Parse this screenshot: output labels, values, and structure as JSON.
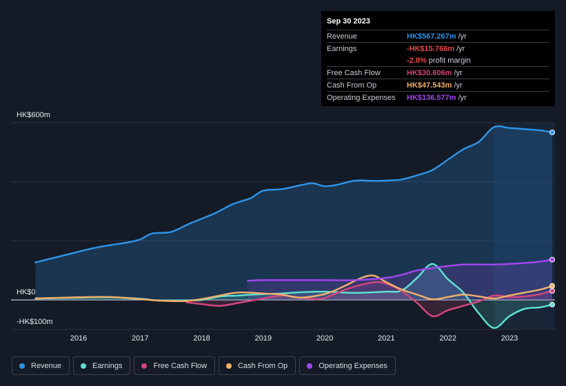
{
  "chart_data": {
    "type": "line",
    "ylim": [
      -100,
      600
    ],
    "y_axis_labels": [
      "HK$600m",
      "HK$0",
      "-HK$100m"
    ],
    "x_ticks": [
      "2016",
      "2017",
      "2018",
      "2019",
      "2020",
      "2021",
      "2022",
      "2023"
    ],
    "series": [
      {
        "name": "Revenue",
        "color": "#2e93e6",
        "fill": true,
        "x": [
          2015.3,
          2015.8,
          2016.3,
          2016.8,
          2017.0,
          2017.2,
          2017.5,
          2017.8,
          2018.2,
          2018.5,
          2018.8,
          2019.0,
          2019.3,
          2019.6,
          2019.8,
          2020.0,
          2020.2,
          2020.5,
          2020.8,
          2021.0,
          2021.25,
          2021.5,
          2021.75,
          2022.0,
          2022.25,
          2022.5,
          2022.75,
          2023.0,
          2023.25,
          2023.5,
          2023.75
        ],
        "values": [
          127,
          153,
          178,
          195,
          205,
          225,
          230,
          258,
          292,
          324,
          345,
          370,
          375,
          388,
          395,
          385,
          390,
          404,
          403,
          404,
          408,
          422,
          440,
          475,
          510,
          535,
          585,
          582,
          578,
          574,
          567.267
        ]
      },
      {
        "name": "Earnings",
        "color": "#5ee0d1",
        "fill": true,
        "x": [
          2015.3,
          2016.0,
          2016.5,
          2017.0,
          2017.3,
          2017.7,
          2018.0,
          2018.3,
          2018.6,
          2019.0,
          2019.3,
          2019.6,
          2020.0,
          2020.5,
          2021.0,
          2021.25,
          2021.5,
          2021.75,
          2022.0,
          2022.25,
          2022.5,
          2022.75,
          2023.0,
          2023.25,
          2023.5,
          2023.75
        ],
        "values": [
          5,
          8,
          9,
          4,
          -2,
          -2,
          0,
          12,
          15,
          20,
          22,
          26,
          28,
          24,
          28,
          32,
          75,
          122,
          70,
          25,
          -45,
          -95,
          -55,
          -30,
          -25,
          -15.766
        ]
      },
      {
        "name": "Free Cash Flow",
        "color": "#d2467e",
        "fill": true,
        "x": [
          2017.75,
          2018.0,
          2018.3,
          2018.6,
          2019.0,
          2019.3,
          2019.6,
          2019.9,
          2020.1,
          2020.4,
          2020.8,
          2021.0,
          2021.25,
          2021.5,
          2021.75,
          2022.0,
          2022.25,
          2022.5,
          2022.75,
          2023.0,
          2023.25,
          2023.5,
          2023.75
        ],
        "values": [
          -8,
          -14,
          -20,
          -10,
          5,
          15,
          8,
          3,
          15,
          40,
          60,
          55,
          30,
          -10,
          -55,
          -35,
          -20,
          -5,
          15,
          10,
          12,
          20,
          30.606
        ]
      },
      {
        "name": "Cash From Op",
        "color": "#f0b06a",
        "fill": false,
        "x": [
          2015.3,
          2016.0,
          2016.5,
          2017.0,
          2017.3,
          2017.7,
          2018.0,
          2018.3,
          2018.6,
          2019.0,
          2019.3,
          2019.6,
          2020.0,
          2020.3,
          2020.6,
          2020.8,
          2021.0,
          2021.25,
          2021.5,
          2021.75,
          2022.0,
          2022.25,
          2022.5,
          2022.75,
          2023.0,
          2023.25,
          2023.5,
          2023.75
        ],
        "values": [
          5,
          9,
          10,
          3,
          -2,
          -4,
          3,
          15,
          25,
          22,
          18,
          8,
          20,
          45,
          75,
          82,
          60,
          35,
          18,
          2,
          10,
          18,
          12,
          5,
          15,
          25,
          35,
          47.543
        ]
      },
      {
        "name": "Operating Expenses",
        "color": "#a246ee",
        "fill": true,
        "x": [
          2018.75,
          2019.0,
          2019.5,
          2020.0,
          2020.5,
          2021.0,
          2021.25,
          2021.5,
          2021.75,
          2022.0,
          2022.25,
          2022.5,
          2022.75,
          2023.0,
          2023.25,
          2023.5,
          2023.75
        ],
        "values": [
          65,
          67,
          67,
          67,
          67,
          75,
          85,
          100,
          108,
          115,
          120,
          120,
          120,
          122,
          125,
          130,
          136.577
        ]
      }
    ]
  },
  "tooltip": {
    "date": "Sep 30 2023",
    "rows": [
      {
        "label": "Revenue",
        "value": "HK$567.267m",
        "unit": "/yr",
        "color": "#2e93e6"
      },
      {
        "label": "Earnings",
        "value": "-HK$15.766m",
        "unit": "/yr",
        "color": "#e8474a"
      },
      {
        "label": "",
        "value": "-2.8%",
        "unit": "profit margin",
        "color": "#e8474a"
      },
      {
        "label": "Free Cash Flow",
        "value": "HK$30.606m",
        "unit": "/yr",
        "color": "#d2467e"
      },
      {
        "label": "Cash From Op",
        "value": "HK$47.543m",
        "unit": "/yr",
        "color": "#f0b06a"
      },
      {
        "label": "Operating Expenses",
        "value": "HK$136.577m",
        "unit": "/yr",
        "color": "#a246ee"
      }
    ]
  },
  "legend": [
    {
      "label": "Revenue",
      "color": "#2e93e6"
    },
    {
      "label": "Earnings",
      "color": "#5ee0d1"
    },
    {
      "label": "Free Cash Flow",
      "color": "#d2467e"
    },
    {
      "label": "Cash From Op",
      "color": "#f0b06a"
    },
    {
      "label": "Operating Expenses",
      "color": "#a246ee"
    }
  ]
}
